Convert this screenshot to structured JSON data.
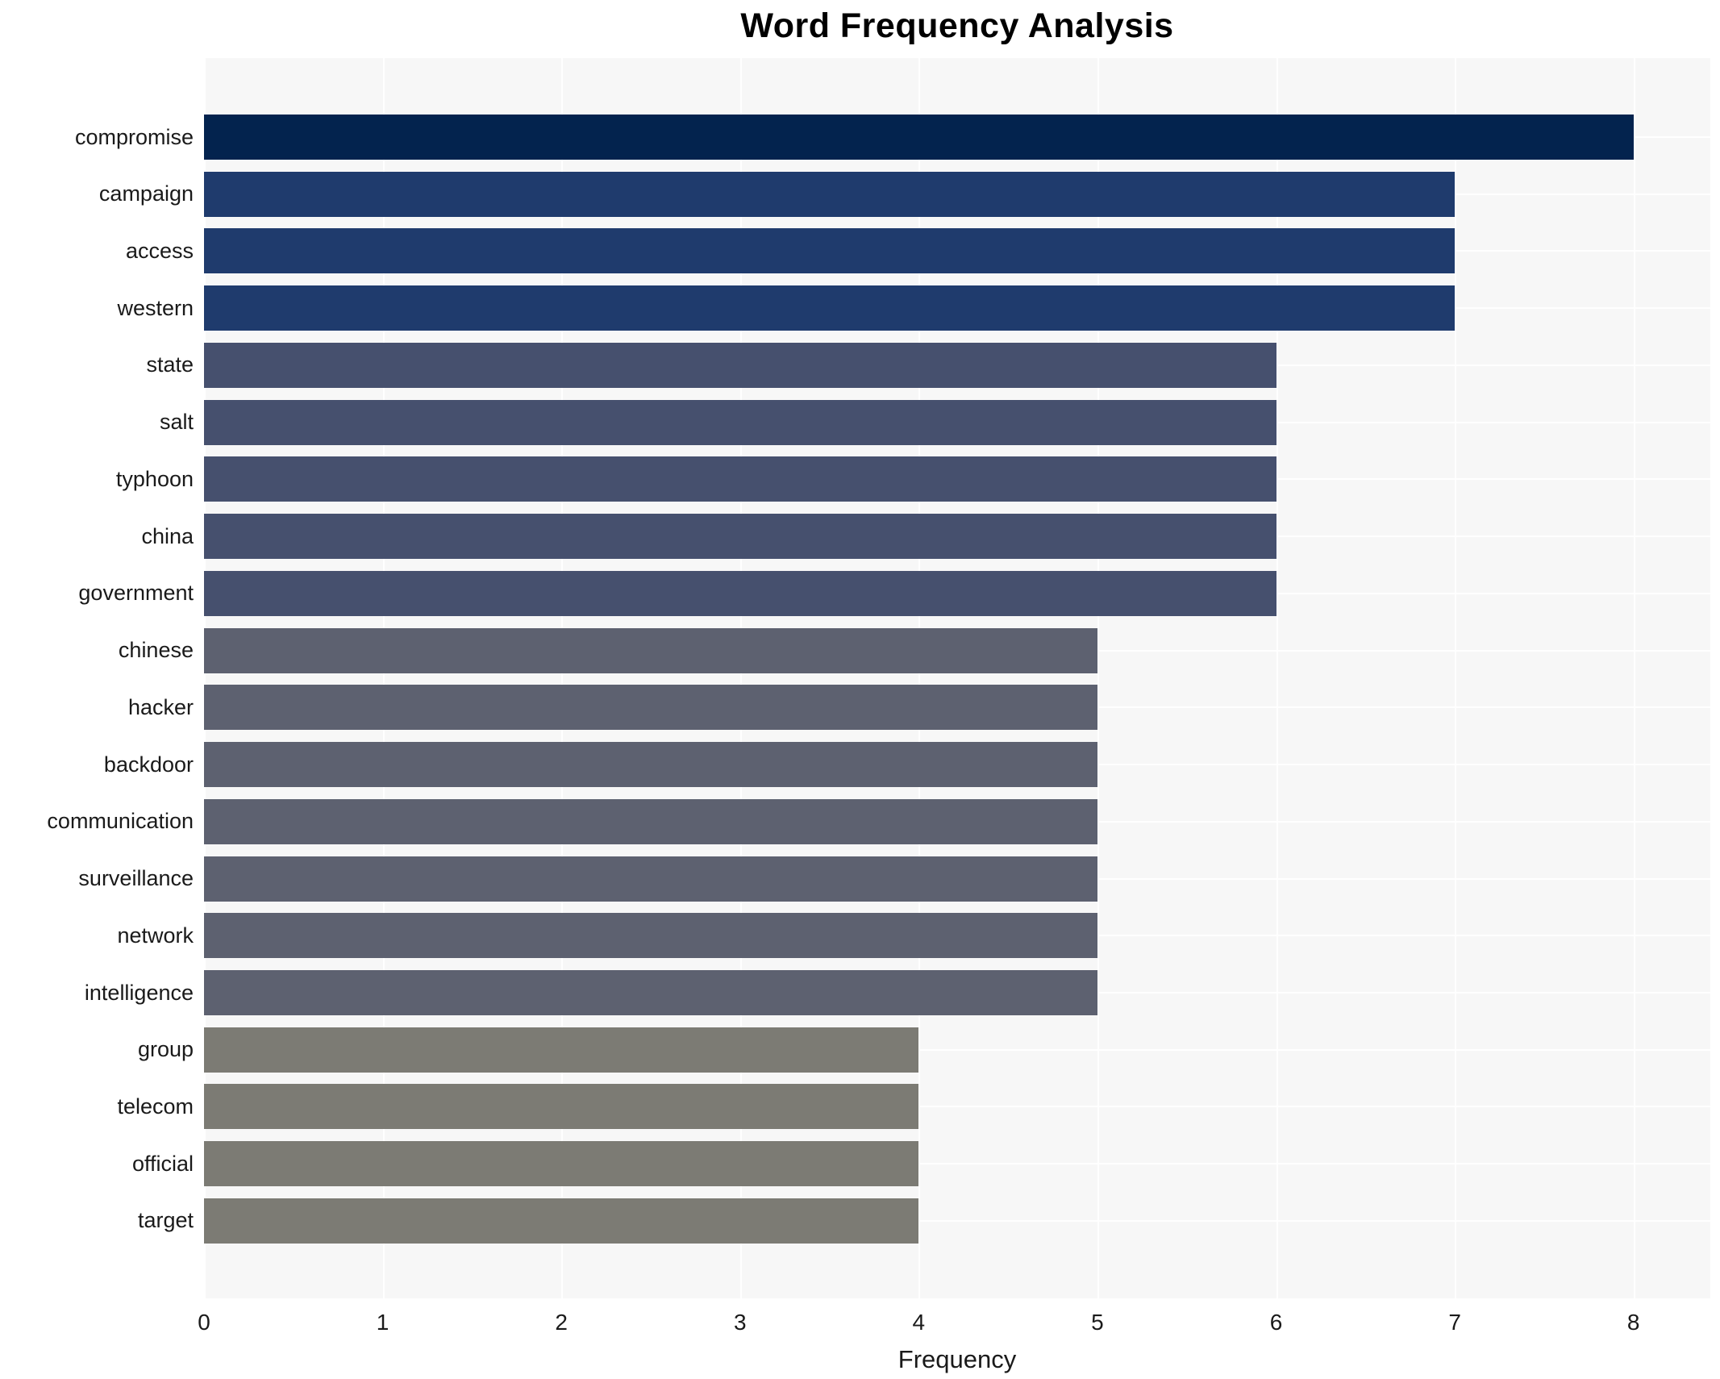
{
  "figure": {
    "background": "#ffffff",
    "plot_background": "#f7f7f7",
    "gridline_color": "#ffffff",
    "tick_text_color": "#1a1a1a",
    "title_color": "#000000"
  },
  "chart_data": {
    "type": "bar",
    "orientation": "horizontal",
    "title": "Word Frequency Analysis",
    "xlabel": "Frequency",
    "ylabel": "",
    "categories": [
      "compromise",
      "campaign",
      "access",
      "western",
      "state",
      "salt",
      "typhoon",
      "china",
      "government",
      "chinese",
      "hacker",
      "backdoor",
      "communication",
      "surveillance",
      "network",
      "intelligence",
      "group",
      "telecom",
      "official",
      "target"
    ],
    "values": [
      8,
      7,
      7,
      7,
      6,
      6,
      6,
      6,
      6,
      5,
      5,
      5,
      5,
      5,
      5,
      5,
      4,
      4,
      4,
      4
    ],
    "x_ticks": [
      "0",
      "1",
      "2",
      "3",
      "4",
      "5",
      "6",
      "7",
      "8"
    ],
    "x_tick_values": [
      0,
      1,
      2,
      3,
      4,
      5,
      6,
      7,
      8
    ],
    "xlim": [
      0,
      8.43
    ],
    "grid": "both",
    "legend": "none",
    "bar_colors_by_value": {
      "8": "#03234e",
      "7": "#1f3b6d",
      "6": "#46506e",
      "5": "#5d6170",
      "4": "#7c7b74"
    }
  }
}
